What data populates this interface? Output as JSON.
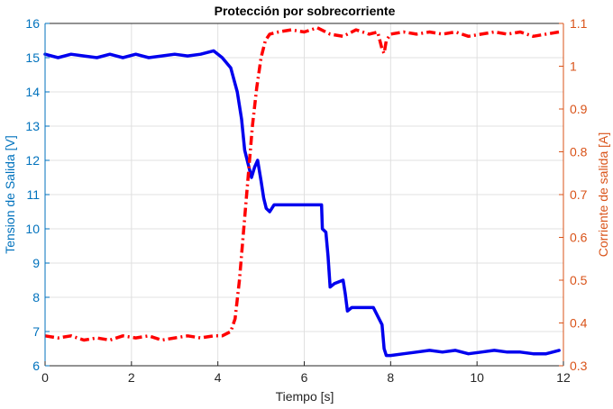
{
  "chart_data": {
    "type": "line",
    "title": "Protección por sobrecorriente",
    "xlabel": "Tiempo [s]",
    "ylabel_left": "Tension de Salida [V]",
    "ylabel_right": "Corriente de salida [A]",
    "xlim": [
      0,
      12
    ],
    "ylim_left": [
      6,
      16
    ],
    "ylim_right": [
      0.3,
      1.1
    ],
    "x_ticks": [
      "0",
      "2",
      "4",
      "6",
      "8",
      "10",
      "12"
    ],
    "y_left_ticks": [
      "6",
      "7",
      "8",
      "9",
      "10",
      "11",
      "12",
      "13",
      "14",
      "15",
      "16"
    ],
    "y_right_ticks": [
      "0.3",
      "0.4",
      "0.5",
      "0.6",
      "0.7",
      "0.8",
      "0.9",
      "1",
      "1.1"
    ],
    "grid": true,
    "colors": {
      "voltage": "#0000ee",
      "current": "#ff0000",
      "left_axis": "#0072bd",
      "right_axis": "#d95319",
      "grid": "#e0e0e0"
    },
    "series": [
      {
        "axis": "left",
        "style": "solid",
        "x": [
          0,
          0.3,
          0.6,
          0.9,
          1.2,
          1.5,
          1.8,
          2.1,
          2.4,
          2.7,
          3.0,
          3.3,
          3.6,
          3.9,
          4.1,
          4.3,
          4.45,
          4.55,
          4.62,
          4.7,
          4.78,
          4.85,
          4.92,
          5.0,
          5.06,
          5.12,
          5.2,
          5.3,
          5.5,
          5.8,
          6.1,
          6.4,
          6.42,
          6.5,
          6.55,
          6.6,
          6.7,
          6.9,
          6.95,
          7.0,
          7.1,
          7.3,
          7.6,
          7.8,
          7.85,
          7.9,
          8.0,
          8.3,
          8.6,
          8.9,
          9.2,
          9.5,
          9.8,
          10.1,
          10.4,
          10.7,
          11.0,
          11.3,
          11.6,
          11.9
        ],
        "y": [
          15.1,
          15.0,
          15.1,
          15.05,
          15.0,
          15.1,
          15.0,
          15.1,
          15.0,
          15.05,
          15.1,
          15.05,
          15.1,
          15.2,
          15.0,
          14.7,
          14.0,
          13.2,
          12.3,
          11.9,
          11.5,
          11.8,
          12.0,
          11.4,
          10.9,
          10.6,
          10.5,
          10.7,
          10.7,
          10.7,
          10.7,
          10.7,
          10.0,
          9.9,
          9.2,
          8.3,
          8.4,
          8.5,
          8.1,
          7.6,
          7.7,
          7.7,
          7.7,
          7.2,
          6.5,
          6.3,
          6.3,
          6.35,
          6.4,
          6.45,
          6.4,
          6.45,
          6.35,
          6.4,
          6.45,
          6.4,
          6.4,
          6.35,
          6.35,
          6.45
        ]
      },
      {
        "axis": "right",
        "style": "dashdot",
        "x": [
          0,
          0.3,
          0.6,
          0.9,
          1.2,
          1.5,
          1.8,
          2.1,
          2.4,
          2.7,
          3.0,
          3.3,
          3.6,
          3.9,
          4.1,
          4.3,
          4.4,
          4.5,
          4.6,
          4.7,
          4.8,
          4.9,
          5.0,
          5.1,
          5.2,
          5.4,
          5.7,
          6.0,
          6.3,
          6.6,
          6.9,
          7.2,
          7.5,
          7.7,
          7.8,
          7.85,
          7.9,
          8.0,
          8.3,
          8.6,
          8.9,
          9.2,
          9.5,
          9.8,
          10.1,
          10.4,
          10.7,
          11.0,
          11.3,
          11.6,
          11.9
        ],
        "y": [
          0.37,
          0.365,
          0.37,
          0.36,
          0.365,
          0.36,
          0.37,
          0.365,
          0.37,
          0.36,
          0.365,
          0.37,
          0.365,
          0.37,
          0.37,
          0.38,
          0.41,
          0.5,
          0.62,
          0.74,
          0.86,
          0.95,
          1.02,
          1.06,
          1.075,
          1.08,
          1.085,
          1.08,
          1.09,
          1.075,
          1.07,
          1.085,
          1.075,
          1.08,
          1.04,
          1.03,
          1.06,
          1.075,
          1.08,
          1.075,
          1.08,
          1.075,
          1.08,
          1.07,
          1.075,
          1.08,
          1.075,
          1.08,
          1.07,
          1.075,
          1.08
        ]
      }
    ]
  }
}
